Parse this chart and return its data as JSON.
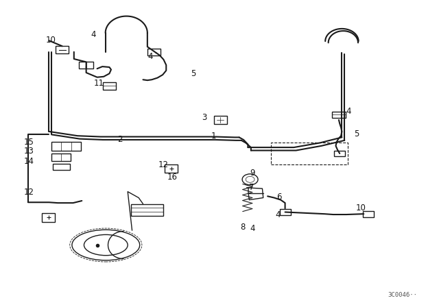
{
  "bg_color": "#ffffff",
  "lc": "#1a1a1a",
  "watermark": "3C0046··",
  "labels": {
    "10_tl": [
      0.138,
      0.895,
      "10"
    ],
    "4_tl": [
      0.22,
      0.882,
      "4"
    ],
    "4_tc": [
      0.355,
      0.778,
      "4"
    ],
    "5_tc": [
      0.43,
      0.735,
      "5"
    ],
    "11": [
      0.218,
      0.72,
      "11"
    ],
    "15": [
      0.082,
      0.595,
      "15"
    ],
    "13": [
      0.082,
      0.563,
      "13"
    ],
    "14": [
      0.082,
      0.53,
      "14"
    ],
    "2": [
      0.31,
      0.533,
      "2"
    ],
    "1": [
      0.48,
      0.54,
      "1"
    ],
    "3": [
      0.52,
      0.608,
      "3"
    ],
    "12_c": [
      0.39,
      0.448,
      "12"
    ],
    "16": [
      0.41,
      0.408,
      "16"
    ],
    "12_l": [
      0.055,
      0.382,
      "12"
    ],
    "9": [
      0.565,
      0.402,
      "9"
    ],
    "7": [
      0.566,
      0.37,
      "7"
    ],
    "6": [
      0.64,
      0.345,
      "6"
    ],
    "4_br": [
      0.647,
      0.3,
      "4"
    ],
    "8": [
      0.535,
      0.248,
      "8"
    ],
    "4_bc": [
      0.575,
      0.242,
      "4"
    ],
    "10_r": [
      0.805,
      0.33,
      "10"
    ],
    "4_r": [
      0.782,
      0.62,
      "4"
    ],
    "5_r": [
      0.8,
      0.573,
      "5"
    ]
  }
}
